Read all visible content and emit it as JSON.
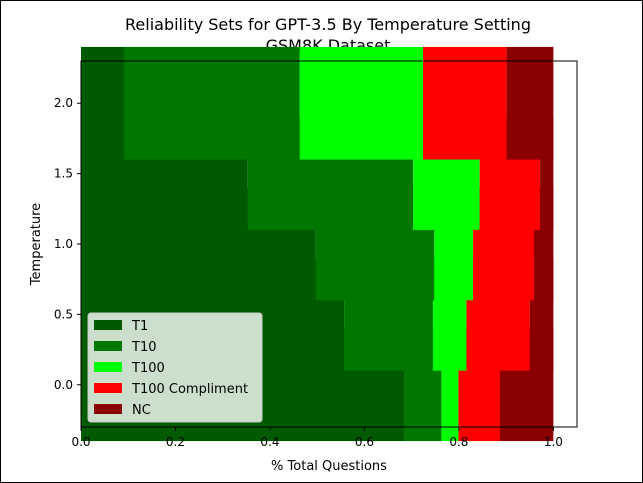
{
  "chart_data": {
    "type": "bar",
    "orientation": "horizontal",
    "stacked": true,
    "title": "Reliability Sets for GPT-3.5 By Temperature Setting",
    "subtitle": "GSM8K Dataset",
    "xlabel": "% Total Questions",
    "ylabel": "Temperature",
    "xlim": [
      0.0,
      1.05
    ],
    "ylim": [
      -0.3,
      2.3
    ],
    "xticks": [
      "0.0",
      "0.2",
      "0.4",
      "0.6",
      "0.8",
      "1.0"
    ],
    "yticks": [
      "0.0",
      "0.5",
      "1.0",
      "1.5",
      "2.0"
    ],
    "categories": [
      0.0,
      0.5,
      1.0,
      1.5,
      2.0
    ],
    "legend_position": "lower-left",
    "grid": false,
    "series": [
      {
        "name": "T1",
        "color": "#005a00",
        "values": [
          0.685,
          0.557,
          0.497,
          0.353,
          0.091
        ]
      },
      {
        "name": "T10",
        "color": "#007800",
        "values": [
          0.078,
          0.188,
          0.251,
          0.35,
          0.372
        ]
      },
      {
        "name": "T100",
        "color": "#00ff00",
        "values": [
          0.036,
          0.071,
          0.082,
          0.141,
          0.261
        ]
      },
      {
        "name": "T100 Compliment",
        "color": "#ff0000",
        "values": [
          0.088,
          0.134,
          0.129,
          0.128,
          0.177
        ]
      },
      {
        "name": "NC",
        "color": "#8b0000",
        "values": [
          0.113,
          0.05,
          0.041,
          0.028,
          0.099
        ]
      }
    ]
  }
}
